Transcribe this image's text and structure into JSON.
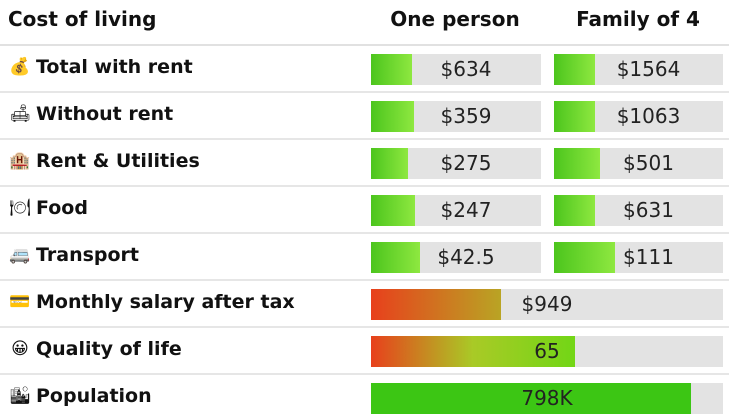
{
  "header": {
    "label": "Cost of living",
    "col_one": "One person",
    "col_family": "Family of 4"
  },
  "rows": [
    {
      "icon": "money-bag-icon",
      "glyph": "💰",
      "label": "Total with rent",
      "one": "$634",
      "one_fill": 0.24,
      "family": "$1564",
      "family_fill": 0.24
    },
    {
      "icon": "sofa-icon",
      "glyph": "🛋",
      "label": "Without rent",
      "one": "$359",
      "one_fill": 0.25,
      "family": "$1063",
      "family_fill": 0.24
    },
    {
      "icon": "hotel-icon",
      "glyph": "🏨",
      "label": "Rent & Utilities",
      "one": "$275",
      "one_fill": 0.22,
      "family": "$501",
      "family_fill": 0.27
    },
    {
      "icon": "plate-icon",
      "glyph": "🍽",
      "label": "Food",
      "one": "$247",
      "one_fill": 0.26,
      "family": "$631",
      "family_fill": 0.24
    },
    {
      "icon": "bus-icon",
      "glyph": "🚐",
      "label": "Transport",
      "one": "$42.5",
      "one_fill": 0.29,
      "family": "$111",
      "family_fill": 0.36
    }
  ],
  "wide_rows": [
    {
      "icon": "credit-card-icon",
      "glyph": "💳",
      "label": "Monthly salary after tax",
      "value": "$949",
      "fill": 0.37,
      "style": "orange"
    },
    {
      "icon": "smiley-icon",
      "glyph": "😀",
      "label": "Quality of life",
      "value": "65",
      "fill": 0.58,
      "style": "rg"
    },
    {
      "icon": "city-icon",
      "glyph": "🏙",
      "label": "Population",
      "value": "798K",
      "fill": 0.91,
      "style": "green"
    }
  ]
}
